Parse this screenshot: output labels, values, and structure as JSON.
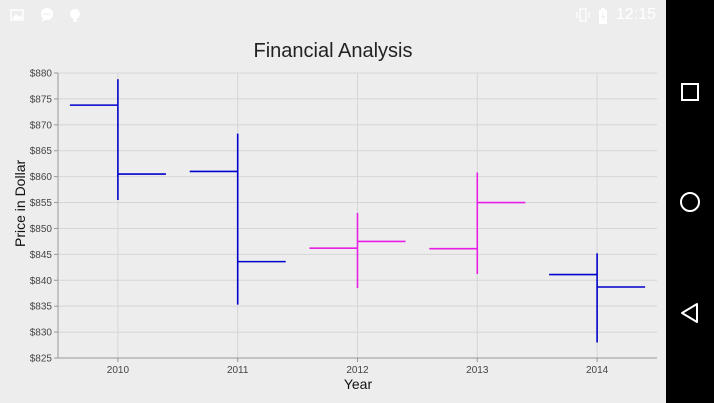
{
  "status_bar": {
    "time": "12:15",
    "icons": [
      "image-icon",
      "chat-bubble-icon",
      "notification-icon",
      "vibrate-icon",
      "battery-icon"
    ]
  },
  "nav_bar": {
    "icons": [
      "recent-apps-icon",
      "home-icon",
      "back-icon"
    ]
  },
  "chart_data": {
    "type": "hilo-open-close",
    "title": "Financial Analysis",
    "xlabel": "Year",
    "ylabel": "Price in Dollar",
    "ylim": [
      825,
      880
    ],
    "y_ticks": [
      "$825",
      "$830",
      "$835",
      "$840",
      "$845",
      "$850",
      "$855",
      "$860",
      "$865",
      "$870",
      "$875",
      "$880"
    ],
    "categories": [
      "2010",
      "2011",
      "2012",
      "2013",
      "2014"
    ],
    "points": [
      {
        "x": "2010",
        "open": 873.8,
        "high": 878.8,
        "low": 855.5,
        "close": 860.5,
        "color": "#0000cc"
      },
      {
        "x": "2011",
        "open": 861.0,
        "high": 868.3,
        "low": 835.3,
        "close": 843.6,
        "color": "#0000cc"
      },
      {
        "x": "2012",
        "open": 846.2,
        "high": 853.0,
        "low": 838.5,
        "close": 847.5,
        "color": "#e61ee6"
      },
      {
        "x": "2013",
        "open": 846.1,
        "high": 860.8,
        "low": 841.2,
        "close": 855.0,
        "color": "#e61ee6"
      },
      {
        "x": "2014",
        "open": 841.1,
        "high": 845.2,
        "low": 828.0,
        "close": 838.7,
        "color": "#0000cc"
      }
    ],
    "grid": true,
    "legend": "none"
  }
}
